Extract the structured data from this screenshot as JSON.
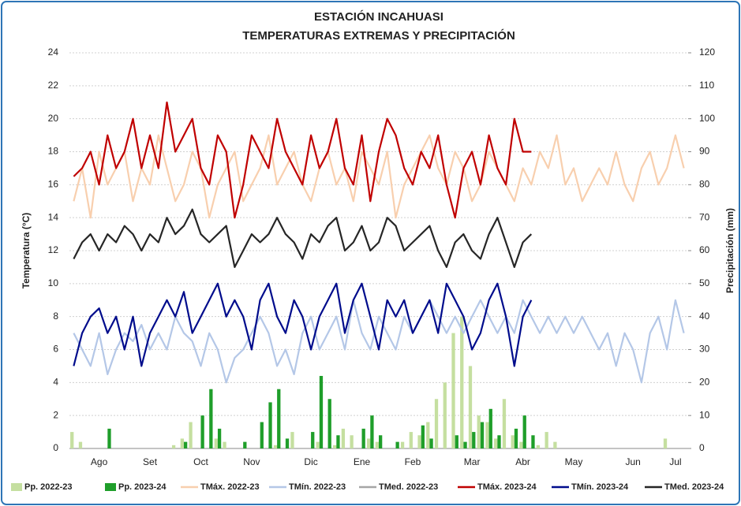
{
  "chart_data": {
    "type": "combo",
    "title": "ESTACIÓN INCAHUASI",
    "subtitle": "TEMPERATURAS EXTREMAS Y PRECIPITACIÓN",
    "y_label": "Temperatura (°C)",
    "y2_label": "Precipitación (mm)",
    "ylim": [
      0,
      24
    ],
    "yticks": [
      0,
      2,
      4,
      6,
      8,
      10,
      12,
      14,
      16,
      18,
      20,
      22,
      24
    ],
    "y2lim": [
      0,
      120
    ],
    "y2ticks": [
      0,
      10,
      20,
      30,
      40,
      50,
      60,
      70,
      80,
      90,
      100,
      110,
      120
    ],
    "grid": true,
    "legend": "bottom",
    "categories": [
      null,
      null,
      null,
      "Ago",
      null,
      null,
      null,
      null,
      null,
      "Set",
      null,
      null,
      null,
      null,
      null,
      "Oct",
      null,
      null,
      null,
      null,
      null,
      "Nov",
      null,
      null,
      null,
      null,
      null,
      null,
      "Dic",
      null,
      null,
      null,
      null,
      null,
      "Ene",
      null,
      null,
      null,
      null,
      null,
      "Feb",
      null,
      null,
      null,
      null,
      null,
      null,
      "Mar",
      null,
      null,
      null,
      null,
      null,
      "Abr",
      null,
      null,
      null,
      null,
      null,
      "May",
      null,
      null,
      null,
      null,
      null,
      null,
      "Jun",
      null,
      null,
      null,
      null,
      "Jul",
      null
    ],
    "series": [
      {
        "name": "Pp. 2022-23",
        "type": "bar",
        "axis": "y2",
        "color": "#c5dfa0",
        "values": [
          5,
          2,
          0,
          0,
          0,
          0,
          0,
          0,
          0,
          0,
          0,
          0,
          1,
          3,
          8,
          0,
          0,
          3,
          2,
          0,
          0,
          0,
          0,
          0,
          1,
          0,
          5,
          0,
          0,
          2,
          0,
          1,
          6,
          4,
          0,
          3,
          2,
          0,
          0,
          2,
          5,
          4,
          8,
          15,
          20,
          35,
          40,
          25,
          10,
          8,
          3,
          15,
          4,
          2,
          0,
          1,
          5,
          2,
          0,
          0,
          0,
          0,
          0,
          0,
          0,
          0,
          0,
          0,
          0,
          0,
          3,
          0,
          0
        ]
      },
      {
        "name": "Pp. 2023-24",
        "type": "bar",
        "axis": "y2",
        "color": "#1f9e2a",
        "values": [
          0,
          0,
          0,
          0,
          6,
          0,
          0,
          0,
          0,
          0,
          0,
          0,
          0,
          2,
          0,
          10,
          18,
          6,
          0,
          0,
          2,
          0,
          8,
          14,
          18,
          3,
          0,
          0,
          5,
          22,
          15,
          4,
          0,
          0,
          6,
          10,
          4,
          0,
          2,
          0,
          0,
          7,
          3,
          0,
          0,
          4,
          2,
          5,
          8,
          12,
          4,
          0,
          6,
          10,
          4,
          null,
          null,
          null,
          null,
          null,
          null,
          null,
          null,
          null,
          null,
          null,
          null,
          null,
          null,
          null,
          null,
          null,
          null
        ]
      },
      {
        "name": "TMáx. 2022-23",
        "type": "line",
        "color": "#f8cfae",
        "values": [
          15,
          17,
          14,
          18,
          16,
          17,
          18,
          15,
          17,
          16,
          19,
          17,
          15,
          16,
          18,
          17,
          14,
          16,
          17,
          18,
          15,
          16,
          17,
          19,
          16,
          17,
          18,
          16,
          15,
          17,
          18,
          16,
          17,
          15,
          18,
          17,
          16,
          18,
          14,
          16,
          17,
          18,
          19,
          17,
          16,
          18,
          17,
          15,
          16,
          18,
          17,
          16,
          15,
          17,
          16,
          18,
          17,
          19,
          16,
          17,
          15,
          16,
          17,
          16,
          18,
          16,
          15,
          17,
          18,
          16,
          17,
          19,
          17
        ]
      },
      {
        "name": "TMín. 2022-23",
        "type": "line",
        "color": "#b4c7e7",
        "values": [
          7,
          6,
          5,
          7,
          4.5,
          6,
          7,
          6.5,
          7.5,
          6,
          7,
          6,
          8,
          7,
          6.5,
          5,
          7,
          6,
          4,
          5.5,
          6,
          7,
          8,
          7,
          5,
          6,
          4.5,
          7,
          8,
          6,
          7,
          8,
          6,
          9,
          7,
          6,
          8,
          7,
          6,
          8,
          7,
          8,
          9,
          8,
          7,
          8,
          7,
          8,
          9,
          8,
          7,
          8,
          7,
          9,
          8,
          7,
          8,
          7,
          8,
          7,
          8,
          7,
          6,
          7,
          5,
          7,
          6,
          4,
          7,
          8,
          6,
          9,
          7
        ]
      },
      {
        "name": "TMed. 2022-23",
        "type": "line",
        "color": "#a6a6a6",
        "values": [
          null,
          null,
          null,
          null,
          null,
          null,
          null,
          null,
          null,
          null,
          null,
          null,
          null,
          null,
          null,
          null,
          null,
          null,
          null,
          null,
          null,
          null,
          null,
          null,
          null,
          null,
          null,
          null,
          null,
          null,
          null,
          null,
          null,
          null,
          null,
          null,
          null,
          null,
          null,
          null,
          null,
          null,
          null,
          null,
          null,
          null,
          null,
          null,
          null,
          null,
          null,
          null,
          null,
          null,
          null,
          null,
          null,
          null,
          null,
          null,
          null,
          null,
          null,
          null,
          null,
          null,
          null,
          null,
          null,
          null,
          null,
          null,
          null
        ]
      },
      {
        "name": "TMáx. 2023-24",
        "type": "line",
        "color": "#c00000",
        "values": [
          16.5,
          17,
          18,
          16,
          19,
          17,
          18,
          20,
          17,
          19,
          17,
          21,
          18,
          19,
          20,
          17,
          16,
          19,
          18,
          14,
          16,
          19,
          18,
          17,
          20,
          18,
          17,
          16,
          19,
          17,
          18,
          20,
          17,
          16,
          19,
          15,
          18,
          20,
          19,
          17,
          16,
          18,
          17,
          19,
          16,
          14,
          17,
          18,
          16,
          19,
          17,
          16,
          20,
          18,
          18,
          null,
          null,
          null,
          null,
          null,
          null,
          null,
          null,
          null,
          null,
          null,
          null,
          null,
          null,
          null,
          null,
          null,
          null
        ]
      },
      {
        "name": "TMín. 2023-24",
        "type": "line",
        "color": "#000c8c",
        "values": [
          5,
          7,
          8,
          8.5,
          7,
          8,
          6,
          8,
          5,
          7,
          8,
          9,
          8,
          9.5,
          7,
          8,
          9,
          10,
          8,
          9,
          8,
          6,
          9,
          10,
          8,
          7,
          9,
          8,
          6,
          8,
          9,
          10,
          7,
          9,
          10,
          8,
          6,
          9,
          8,
          9,
          7,
          8,
          9,
          7,
          10,
          9,
          8,
          6,
          7,
          9,
          10,
          8,
          5,
          8,
          9,
          null,
          null,
          null,
          null,
          null,
          null,
          null,
          null,
          null,
          null,
          null,
          null,
          null,
          null,
          null,
          null,
          null,
          null
        ]
      },
      {
        "name": "TMed. 2023-24",
        "type": "line",
        "color": "#262626",
        "values": [
          11.5,
          12.5,
          13,
          12,
          13,
          12.5,
          13.5,
          13,
          12,
          13,
          12.5,
          14,
          13,
          13.5,
          14.5,
          13,
          12.5,
          13,
          13.5,
          11,
          12,
          13,
          12.5,
          13,
          14,
          13,
          12.5,
          11.5,
          13,
          12.5,
          13.5,
          14,
          12,
          12.5,
          13.5,
          12,
          12.5,
          14,
          13.5,
          12,
          12.5,
          13,
          13.5,
          12,
          11,
          12.5,
          13,
          12,
          11.5,
          13,
          14,
          12.5,
          11,
          12.5,
          13,
          null,
          null,
          null,
          null,
          null,
          null,
          null,
          null,
          null,
          null,
          null,
          null,
          null,
          null,
          null,
          null,
          null,
          null
        ]
      }
    ]
  }
}
